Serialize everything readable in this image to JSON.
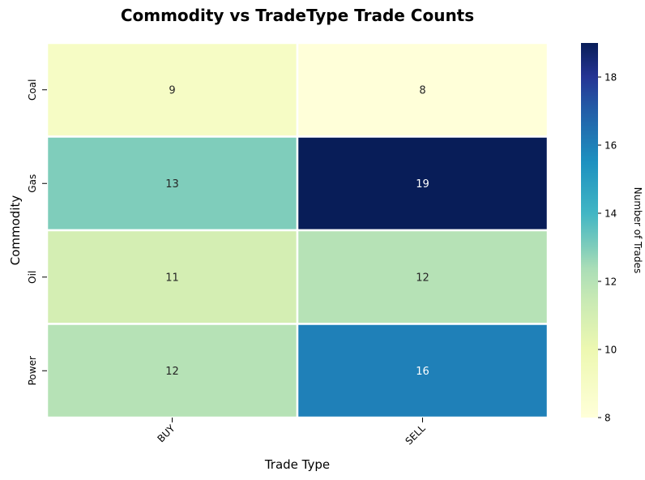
{
  "chart_data": {
    "type": "heatmap",
    "title": "Commodity vs TradeType Trade Counts",
    "xlabel": "Trade Type",
    "ylabel": "Commodity",
    "x_categories": [
      "BUY",
      "SELL"
    ],
    "y_categories": [
      "Coal",
      "Gas",
      "Oil",
      "Power"
    ],
    "values": [
      [
        9,
        8
      ],
      [
        13,
        19
      ],
      [
        11,
        12
      ],
      [
        12,
        16
      ]
    ],
    "colorbar": {
      "label": "Number of Trades",
      "range": [
        8,
        19
      ],
      "ticks": [
        "8",
        "10",
        "12",
        "14",
        "16",
        "18"
      ],
      "colormap": "YlGnBu"
    }
  }
}
